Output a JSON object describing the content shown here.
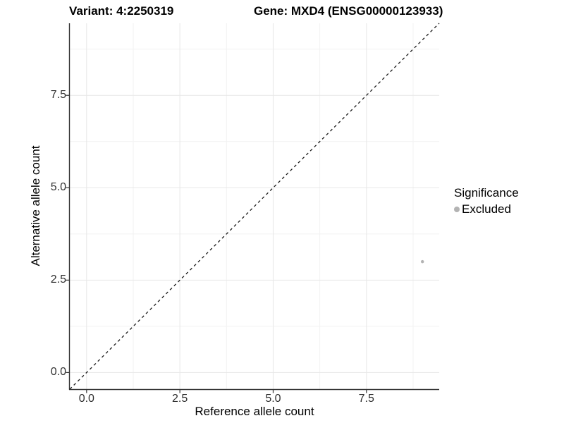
{
  "titles": {
    "variant": "Variant: 4:2250319",
    "gene": "Gene: MXD4 (ENSG00000123933)"
  },
  "axes": {
    "x": {
      "label": "Reference allele count",
      "tick_labels": [
        "0.0",
        "2.5",
        "5.0",
        "7.5"
      ]
    },
    "y": {
      "label": "Alternative allele count",
      "tick_labels": [
        "0.0",
        "2.5",
        "5.0",
        "7.5"
      ]
    }
  },
  "legend": {
    "title": "Significance",
    "items": [
      {
        "label": "Excluded",
        "color": "#b3b3b3",
        "marker": "circle-icon"
      }
    ]
  },
  "chart_data": {
    "type": "scatter",
    "title": "Variant: 4:2250319  |  Gene: MXD4 (ENSG00000123933)",
    "xlabel": "Reference allele count",
    "ylabel": "Alternative allele count",
    "xlim": [
      -0.45,
      9.45
    ],
    "ylim": [
      -0.45,
      9.45
    ],
    "major_ticks": [
      0,
      2.5,
      5.0,
      7.5
    ],
    "minor_ticks": [
      1.25,
      3.75,
      6.25,
      8.75
    ],
    "grid": "on",
    "legend_position": "right",
    "series": [
      {
        "name": "Excluded",
        "color": "#b3b3b3",
        "points": [
          {
            "x": 9,
            "y": 3
          }
        ]
      }
    ],
    "reference_line": {
      "type": "identity",
      "slope": 1,
      "intercept": 0,
      "style": "dashed",
      "color": "#1a1a1a"
    }
  },
  "colors": {
    "grid_major": "#e7e7e7",
    "grid_minor": "#f2f2f2",
    "axis_line": "#333333",
    "tick_text": "#303030"
  }
}
